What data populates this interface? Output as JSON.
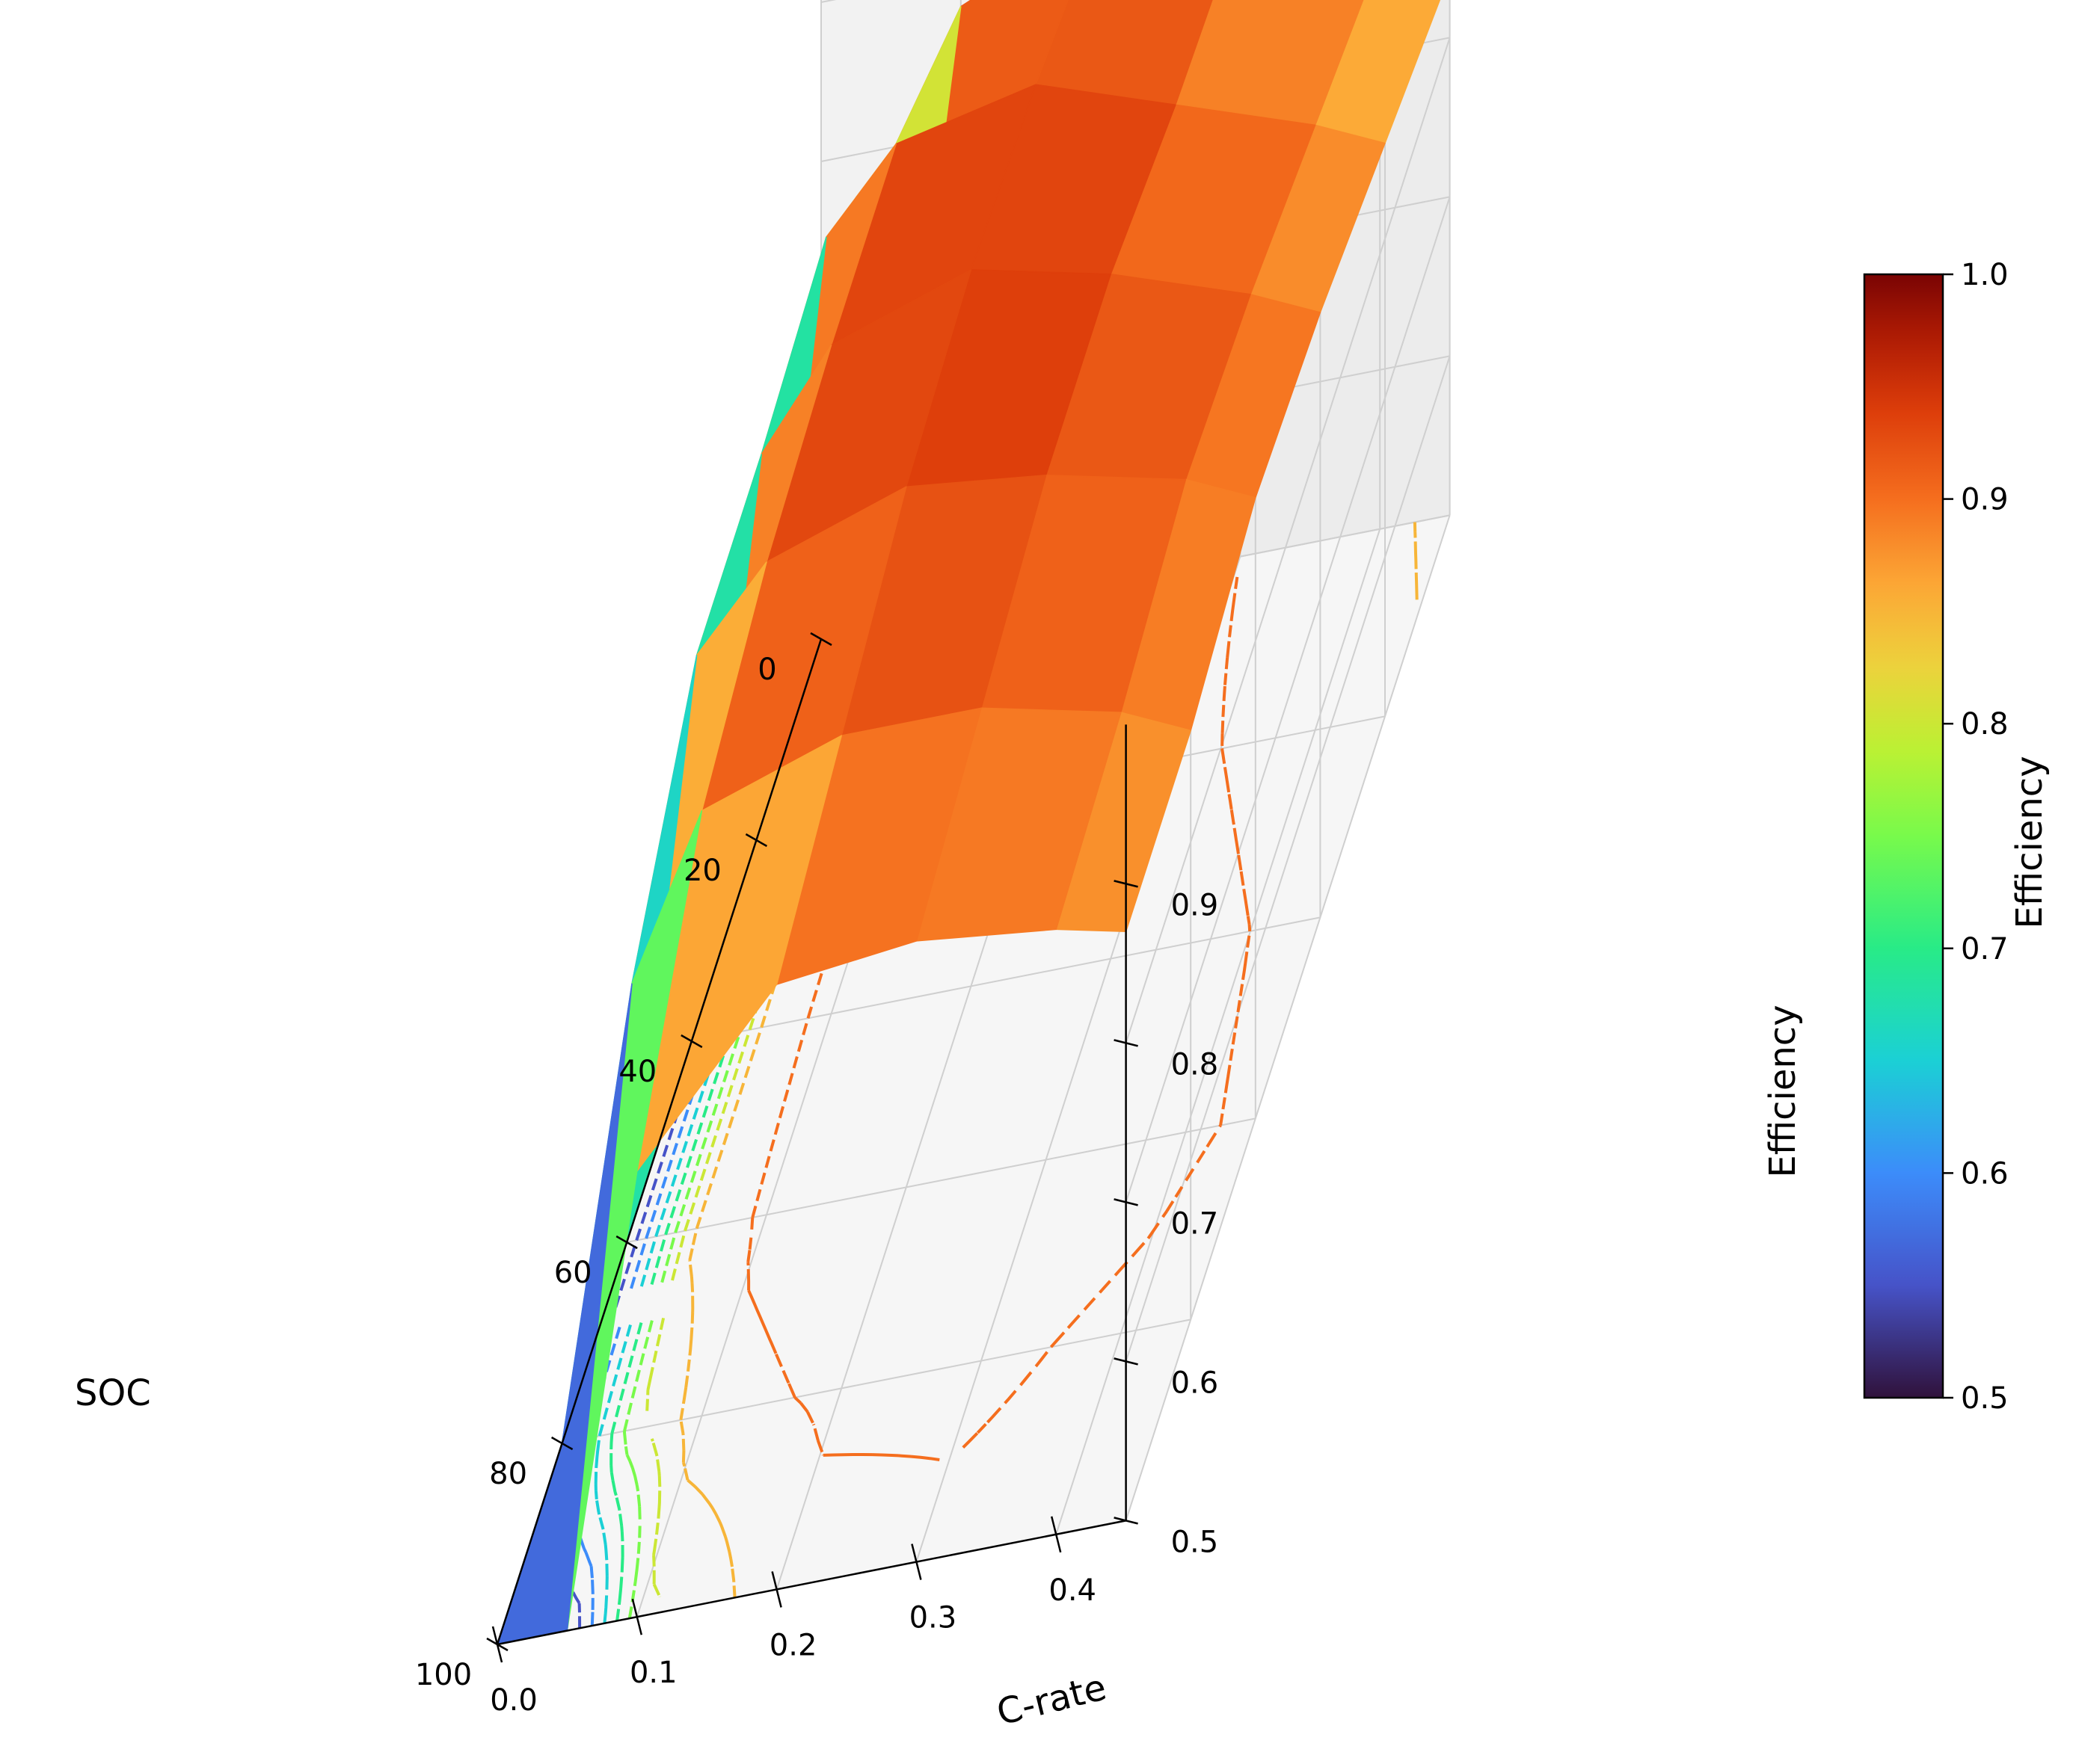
{
  "chart_data": {
    "type": "surface3d",
    "xlabel": "SOC",
    "ylabel": "C-rate",
    "zlabel": "Efficiency",
    "x_ticks": [
      "0",
      "20",
      "40",
      "60",
      "80",
      "100"
    ],
    "y_ticks": [
      "0.0",
      "0.1",
      "0.2",
      "0.3",
      "0.4"
    ],
    "z_ticks": [
      "0.5",
      "0.6",
      "0.7",
      "0.8",
      "0.9"
    ],
    "soc": [
      0,
      20,
      40,
      60,
      80,
      100
    ],
    "c_rate": [
      0.0,
      0.05,
      0.1,
      0.2,
      0.3,
      0.4,
      0.45
    ],
    "efficiency": [
      [
        0.5,
        0.55,
        0.88,
        0.92,
        0.9,
        0.86,
        0.84
      ],
      [
        0.5,
        0.87,
        0.92,
        0.94,
        0.91,
        0.88,
        0.86
      ],
      [
        0.5,
        0.86,
        0.92,
        0.95,
        0.93,
        0.9,
        0.88
      ],
      [
        0.5,
        0.86,
        0.91,
        0.94,
        0.93,
        0.91,
        0.89
      ],
      [
        0.5,
        0.78,
        0.88,
        0.91,
        0.91,
        0.89,
        0.87
      ],
      [
        0.5,
        0.5,
        0.78,
        0.88,
        0.89,
        0.88,
        0.87
      ]
    ],
    "zlim": [
      0.5,
      1.0
    ],
    "colorbar": {
      "label": "Efficiency",
      "range": [
        0.5,
        1.0
      ],
      "ticks": [
        "0.5",
        "0.6",
        "0.7",
        "0.8",
        "0.9",
        "1.0"
      ],
      "colormap": "turbo"
    },
    "contours_on_floor": true,
    "grid": true
  }
}
